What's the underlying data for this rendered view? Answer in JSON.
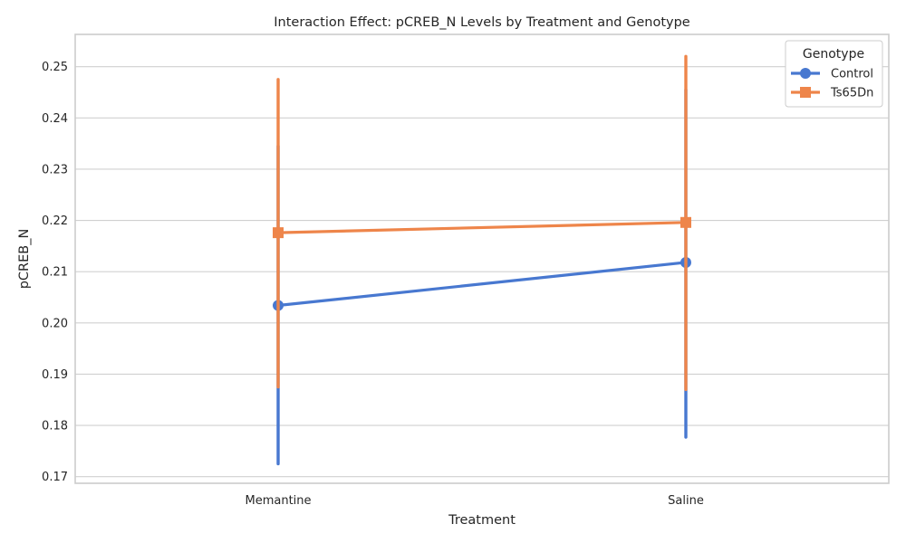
{
  "chart_data": {
    "type": "line",
    "title": "Interaction Effect: pCREB_N Levels by Treatment and Genotype",
    "xlabel": "Treatment",
    "ylabel": "pCREB_N",
    "categories": [
      "Memantine",
      "Saline"
    ],
    "ylim": [
      0.1687,
      0.2563
    ],
    "yticks": [
      0.17,
      0.18,
      0.19,
      0.2,
      0.21,
      0.22,
      0.23,
      0.24,
      0.25
    ],
    "ytick_labels": [
      "0.17",
      "0.18",
      "0.19",
      "0.20",
      "0.21",
      "0.22",
      "0.23",
      "0.24",
      "0.25"
    ],
    "grid": true,
    "legend": {
      "title": "Genotype",
      "placement": "top-right"
    },
    "series": [
      {
        "name": "Control",
        "color": "#4878d0",
        "marker": "circle",
        "values": [
          0.2034,
          0.2118
        ],
        "ci_low": [
          0.1725,
          0.1777
        ],
        "ci_high": [
          0.2345,
          0.2455
        ]
      },
      {
        "name": "Ts65Dn",
        "color": "#ee854a",
        "marker": "square",
        "values": [
          0.2176,
          0.2196
        ],
        "ci_low": [
          0.1875,
          0.187
        ],
        "ci_high": [
          0.2475,
          0.252
        ]
      }
    ]
  }
}
